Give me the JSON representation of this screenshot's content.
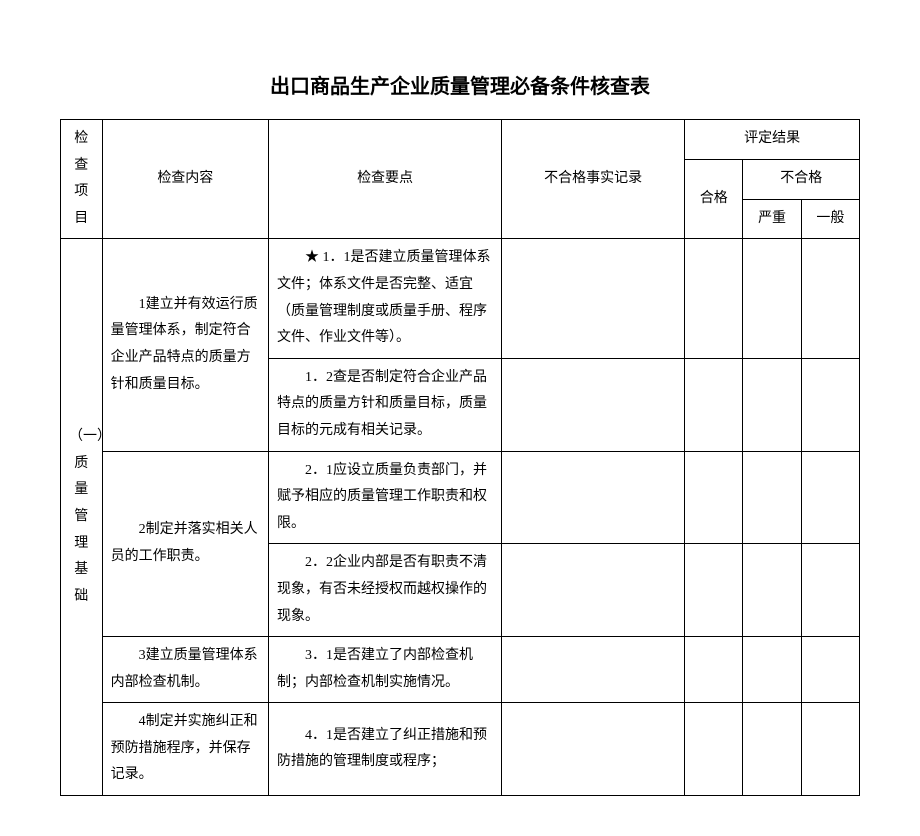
{
  "title": "出口商品生产企业质量管理必备条件核查表",
  "headers": {
    "item": "检查\n项目",
    "content": "检查内容",
    "points": "检查要点",
    "record": "不合格事实记录",
    "result": "评定结果",
    "pass": "合格",
    "fail": "不合格",
    "serious": "严重",
    "general": "一般"
  },
  "section": {
    "label": "（一）\n质量\n管理\n基础"
  },
  "rows": [
    {
      "content": "1建立并有效运行质量管理体系，制定符合企业产品特点的质量方针和质量目标。",
      "points": [
        "★ 1．1是否建立质量管理体系文件；体系文件是否完整、适宜（质量管理制度或质量手册、程序文件、作业文件等）。",
        "1．2查是否制定符合企业产品特点的质量方针和质量目标，质量目标的元成有相关记录。"
      ]
    },
    {
      "content": "2制定并落实相关人员的工作职责。",
      "points": [
        "2．1应设立质量负责部门，并赋予相应的质量管理工作职责和权限。",
        "2．2企业内部是否有职责不清现象，有否未经授权而越权操作的现象。"
      ]
    },
    {
      "content": "3建立质量管理体系内部检查机制。",
      "points": [
        "3．1是否建立了内部检查机制；内部检查机制实施情况。"
      ]
    },
    {
      "content": "4制定并实施纠正和预防措施程序，并保存记录。",
      "points": [
        "4．1是否建立了纠正措施和预防措施的管理制度或程序；"
      ]
    }
  ]
}
